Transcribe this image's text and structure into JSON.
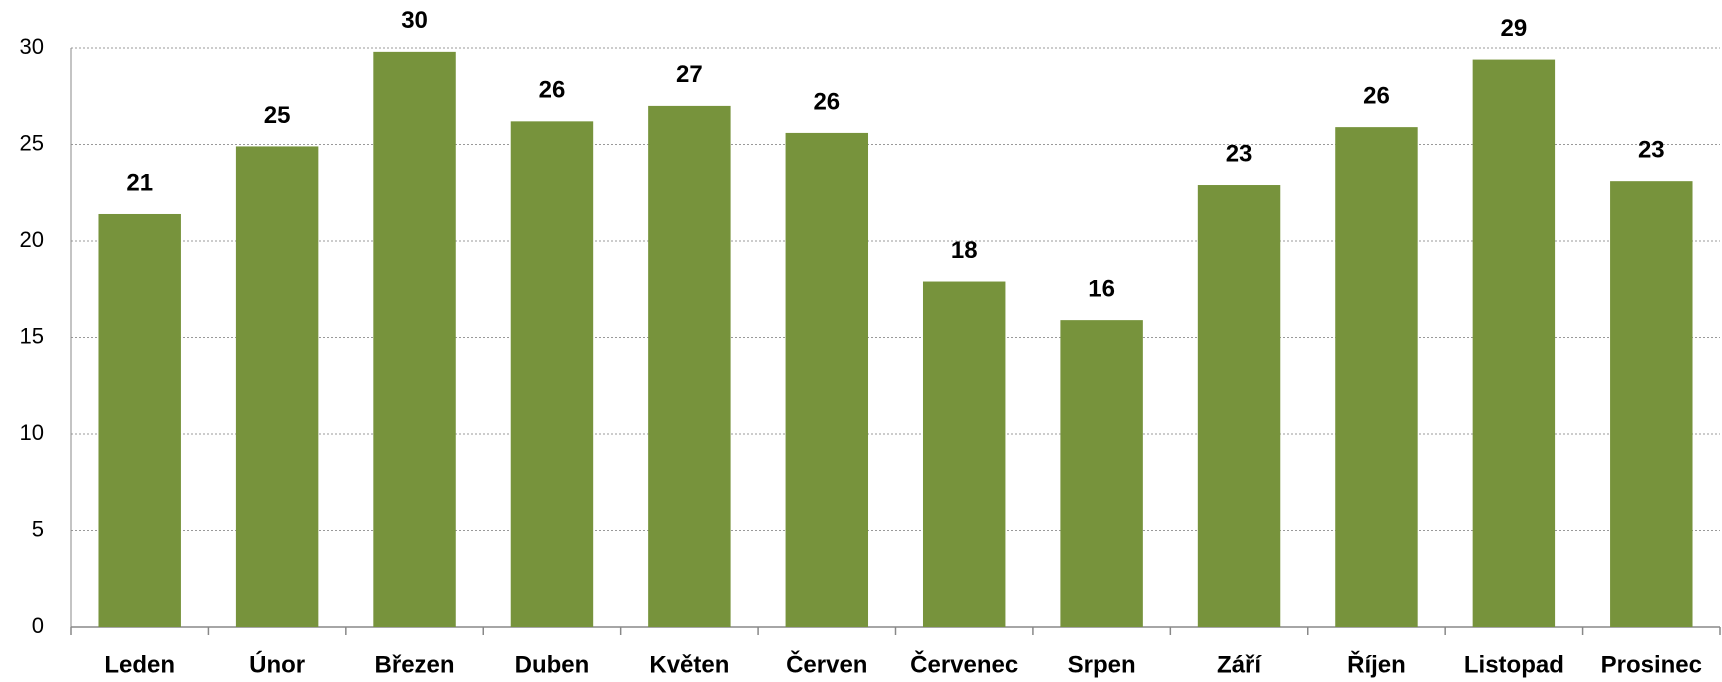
{
  "chart_data": {
    "type": "bar",
    "categories": [
      "Leden",
      "Únor",
      "Březen",
      "Duben",
      "Květen",
      "Červen",
      "Červenec",
      "Srpen",
      "Září",
      "Říjen",
      "Listopad",
      "Prosinec"
    ],
    "values": [
      21.4,
      24.9,
      29.8,
      26.2,
      27.0,
      25.6,
      17.9,
      15.9,
      22.9,
      25.9,
      29.4,
      23.1
    ],
    "value_labels": [
      "21",
      "25",
      "30",
      "26",
      "27",
      "26",
      "18",
      "16",
      "23",
      "26",
      "29",
      "23"
    ],
    "color": "#77933c",
    "ylim": [
      0,
      30
    ],
    "yticks": [
      0,
      5,
      10,
      15,
      20,
      25,
      30
    ],
    "grid": true
  }
}
